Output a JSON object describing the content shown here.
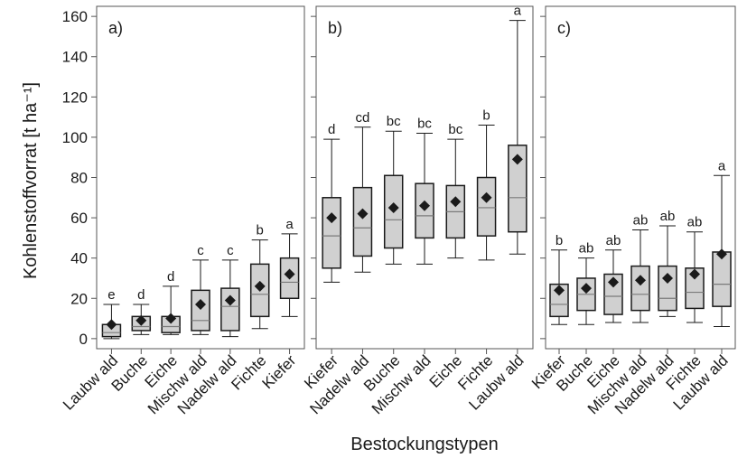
{
  "chart_data": {
    "type": "box",
    "ylabel": "Kohlenstoffvorrat [t ha⁻¹]",
    "xlabel": "Bestockungstypen",
    "ylim": [
      -5,
      165
    ],
    "yticks": [
      0,
      20,
      40,
      60,
      80,
      100,
      120,
      140,
      160
    ],
    "colors": {
      "box": "#d0d0d0",
      "stroke": "#1a1a1a",
      "median": "#7a7a7a",
      "mean": "#1a1a1a"
    },
    "panels": [
      {
        "label": "a)",
        "categories": [
          "Laubw ald",
          "Buche",
          "Eiche",
          "Mischw ald",
          "Nadelw ald",
          "Fichte",
          "Kiefer"
        ],
        "boxes": [
          {
            "whisker_low": 0,
            "q1": 1,
            "median": 3,
            "q3": 7,
            "whisker_high": 17,
            "mean": 7,
            "letter": "e"
          },
          {
            "whisker_low": 2,
            "q1": 4,
            "median": 6,
            "q3": 11,
            "whisker_high": 17,
            "mean": 9,
            "letter": "d"
          },
          {
            "whisker_low": 2,
            "q1": 3,
            "median": 6,
            "q3": 11,
            "whisker_high": 26,
            "mean": 10,
            "letter": "d"
          },
          {
            "whisker_low": 2,
            "q1": 4,
            "median": 9,
            "q3": 24,
            "whisker_high": 39,
            "mean": 17,
            "letter": "c"
          },
          {
            "whisker_low": 1,
            "q1": 4,
            "median": 16,
            "q3": 25,
            "whisker_high": 39,
            "mean": 19,
            "letter": "c"
          },
          {
            "whisker_low": 5,
            "q1": 11,
            "median": 22,
            "q3": 37,
            "whisker_high": 49,
            "mean": 26,
            "letter": "b"
          },
          {
            "whisker_low": 11,
            "q1": 20,
            "median": 28,
            "q3": 40,
            "whisker_high": 52,
            "mean": 32,
            "letter": "a"
          }
        ]
      },
      {
        "label": "b)",
        "categories": [
          "Kiefer",
          "Nadelw ald",
          "Buche",
          "Mischw ald",
          "Eiche",
          "Fichte",
          "Laubw ald"
        ],
        "boxes": [
          {
            "whisker_low": 28,
            "q1": 35,
            "median": 51,
            "q3": 70,
            "whisker_high": 99,
            "mean": 60,
            "letter": "d"
          },
          {
            "whisker_low": 33,
            "q1": 41,
            "median": 55,
            "q3": 75,
            "whisker_high": 105,
            "mean": 62,
            "letter": "cd"
          },
          {
            "whisker_low": 37,
            "q1": 45,
            "median": 59,
            "q3": 81,
            "whisker_high": 103,
            "mean": 65,
            "letter": "bc"
          },
          {
            "whisker_low": 37,
            "q1": 50,
            "median": 61,
            "q3": 77,
            "whisker_high": 102,
            "mean": 66,
            "letter": "bc"
          },
          {
            "whisker_low": 40,
            "q1": 50,
            "median": 63,
            "q3": 76,
            "whisker_high": 99,
            "mean": 68,
            "letter": "bc"
          },
          {
            "whisker_low": 39,
            "q1": 51,
            "median": 65,
            "q3": 80,
            "whisker_high": 106,
            "mean": 70,
            "letter": "b"
          },
          {
            "whisker_low": 42,
            "q1": 53,
            "median": 70,
            "q3": 96,
            "whisker_high": 158,
            "mean": 89,
            "letter": "a"
          }
        ]
      },
      {
        "label": "c)",
        "categories": [
          "Kiefer",
          "Buche",
          "Eiche",
          "Mischw ald",
          "Nadelw ald",
          "Fichte",
          "Laubw ald"
        ],
        "boxes": [
          {
            "whisker_low": 7,
            "q1": 11,
            "median": 17,
            "q3": 27,
            "whisker_high": 44,
            "mean": 24,
            "letter": "b"
          },
          {
            "whisker_low": 7,
            "q1": 14,
            "median": 22,
            "q3": 30,
            "whisker_high": 40,
            "mean": 25,
            "letter": "ab"
          },
          {
            "whisker_low": 8,
            "q1": 12,
            "median": 21,
            "q3": 32,
            "whisker_high": 44,
            "mean": 28,
            "letter": "ab"
          },
          {
            "whisker_low": 8,
            "q1": 14,
            "median": 22,
            "q3": 36,
            "whisker_high": 54,
            "mean": 29,
            "letter": "ab"
          },
          {
            "whisker_low": 11,
            "q1": 14,
            "median": 20,
            "q3": 36,
            "whisker_high": 56,
            "mean": 30,
            "letter": "ab"
          },
          {
            "whisker_low": 8,
            "q1": 15,
            "median": 23,
            "q3": 35,
            "whisker_high": 53,
            "mean": 32,
            "letter": "ab"
          },
          {
            "whisker_low": 6,
            "q1": 16,
            "median": 27,
            "q3": 43,
            "whisker_high": 81,
            "mean": 42,
            "letter": "a"
          }
        ]
      }
    ]
  }
}
